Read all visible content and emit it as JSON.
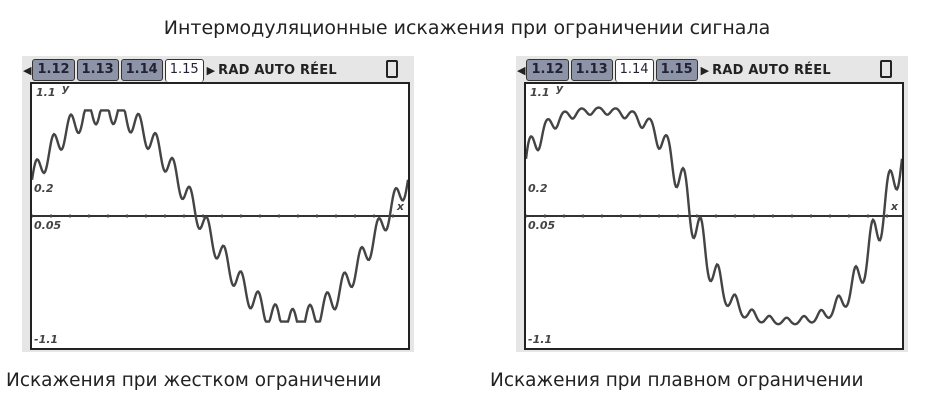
{
  "title": "Интермодуляционные искажения при ограничении сигнала",
  "captions": [
    "Искажения при жестком ограничении",
    "Искажения при плавном ограничении"
  ],
  "screens": [
    {
      "tabs": [
        "1.12",
        "1.13",
        "1.14",
        "1.15"
      ],
      "active_tab": "1.15",
      "mode": "RAD AUTO RÉEL",
      "battery_icon": "battery-icon"
    },
    {
      "tabs": [
        "1.12",
        "1.13",
        "1.14",
        "1.15"
      ],
      "active_tab": "1.14",
      "mode": "RAD AUTO RÉEL",
      "battery_icon": "battery-icon"
    }
  ],
  "chart_data": [
    {
      "type": "line",
      "title": "",
      "xlabel": "x",
      "ylabel": "y",
      "tick_labels": {
        "ymax": "1.1",
        "ymin": "-1.1",
        "yscale": "0.2",
        "xscale": "0.05"
      },
      "ylim": [
        -1.25,
        1.25
      ],
      "grid": false,
      "series": [
        {
          "signal_amplitude": 1.0,
          "signal_periods": 1,
          "interference_amplitude": 0.12,
          "interference_periods": 22,
          "limiting": "hard",
          "limit_level": 1.0
        }
      ]
    },
    {
      "type": "line",
      "title": "",
      "xlabel": "x",
      "ylabel": "y",
      "tick_labels": {
        "ymax": "1.1",
        "ymin": "-1.1",
        "yscale": "0.2",
        "xscale": "0.05"
      },
      "ylim": [
        -1.25,
        1.25
      ],
      "grid": false,
      "series": [
        {
          "signal_amplitude": 1.0,
          "signal_periods": 1,
          "interference_amplitude": 0.12,
          "interference_periods": 22,
          "limiting": "soft",
          "limit_level": 1.0
        }
      ]
    }
  ]
}
